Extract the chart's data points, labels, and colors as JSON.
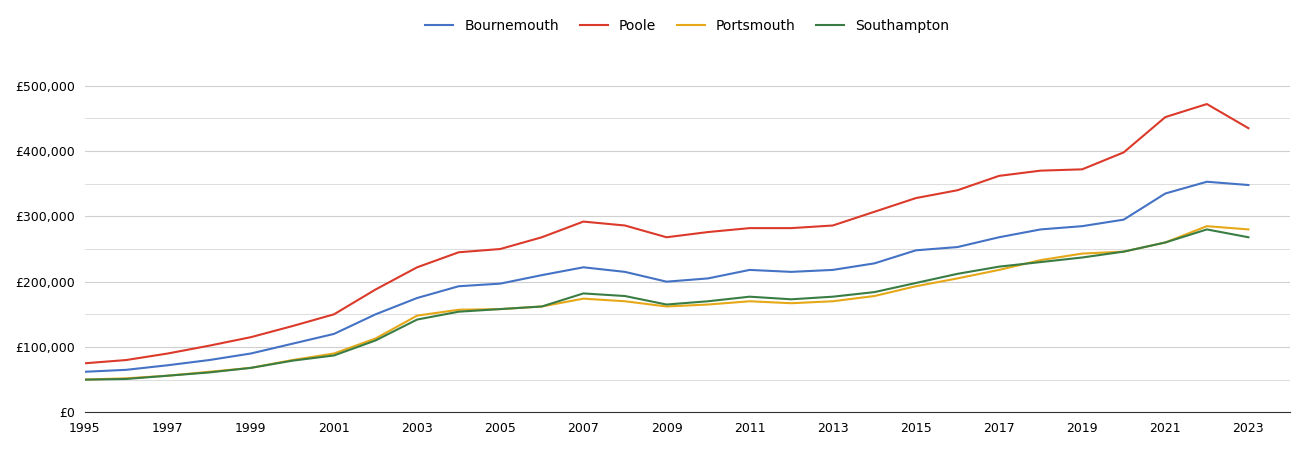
{
  "years": [
    1995,
    1996,
    1997,
    1998,
    1999,
    2000,
    2001,
    2002,
    2003,
    2004,
    2005,
    2006,
    2007,
    2008,
    2009,
    2010,
    2011,
    2012,
    2013,
    2014,
    2015,
    2016,
    2017,
    2018,
    2019,
    2020,
    2021,
    2022,
    2023
  ],
  "bournemouth": [
    62000,
    65000,
    72000,
    80000,
    90000,
    105000,
    120000,
    150000,
    175000,
    193000,
    197000,
    210000,
    222000,
    215000,
    200000,
    205000,
    218000,
    215000,
    218000,
    228000,
    248000,
    253000,
    268000,
    280000,
    285000,
    295000,
    335000,
    353000,
    348000
  ],
  "poole": [
    75000,
    80000,
    90000,
    102000,
    115000,
    132000,
    150000,
    188000,
    222000,
    245000,
    250000,
    268000,
    292000,
    286000,
    268000,
    276000,
    282000,
    282000,
    286000,
    307000,
    328000,
    340000,
    362000,
    370000,
    372000,
    398000,
    452000,
    472000,
    435000
  ],
  "portsmouth": [
    50000,
    52000,
    56000,
    62000,
    68000,
    80000,
    90000,
    113000,
    148000,
    157000,
    158000,
    162000,
    174000,
    170000,
    162000,
    165000,
    170000,
    167000,
    170000,
    178000,
    193000,
    205000,
    218000,
    233000,
    243000,
    246000,
    260000,
    285000,
    280000
  ],
  "southampton": [
    50000,
    51000,
    56000,
    61000,
    68000,
    79000,
    87000,
    110000,
    142000,
    154000,
    158000,
    162000,
    182000,
    178000,
    165000,
    170000,
    177000,
    173000,
    177000,
    184000,
    198000,
    212000,
    223000,
    230000,
    237000,
    246000,
    260000,
    280000,
    268000
  ],
  "colors": {
    "bournemouth": "#4472c4",
    "poole": "#db3a2b",
    "portsmouth": "#e6a817",
    "southampton": "#3a7d44"
  },
  "ylim": [
    0,
    550000
  ],
  "yticks": [
    0,
    50000,
    100000,
    150000,
    200000,
    250000,
    300000,
    350000,
    400000,
    450000,
    500000
  ],
  "ytick_labels": [
    "£0",
    "",
    "£100,000",
    "",
    "£200,000",
    "",
    "£300,000",
    "",
    "£400,000",
    "",
    "£500,000"
  ],
  "background_color": "#ffffff",
  "grid_color": "#d0d0d0"
}
